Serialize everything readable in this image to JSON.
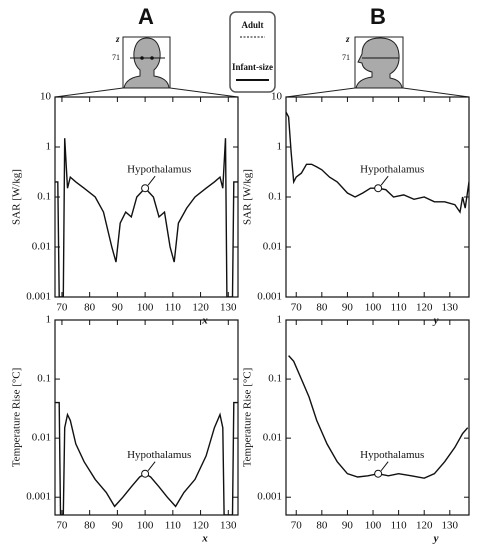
{
  "figure": {
    "panel_labels": [
      "A",
      "B"
    ],
    "legend": [
      "Adult",
      "Infant-size"
    ],
    "head": {
      "axis": "z",
      "level": "71"
    }
  },
  "chart_data": [
    {
      "type": "line",
      "xlabel": "x",
      "ylabel": "SAR [W/kg]",
      "log_y": true,
      "xlim": [
        67.5,
        133.5
      ],
      "ylim": [
        0.001,
        10
      ],
      "xticks": [
        70,
        80,
        90,
        100,
        110,
        120,
        130
      ],
      "yticks": [
        10,
        1,
        0.1,
        0.01,
        0.001
      ],
      "series": [
        {
          "color": "#111111",
          "x": [
            67.5,
            68.5,
            69,
            70.5,
            71,
            72,
            73,
            75,
            78,
            82,
            85,
            88,
            89.5,
            91,
            93,
            95,
            97,
            100,
            103,
            105,
            107,
            109,
            110.5,
            112,
            115,
            118,
            122,
            125,
            127,
            128,
            129,
            129.5,
            131.5,
            132,
            133.5
          ],
          "values": [
            0.2,
            0.2,
            0.001,
            0.001,
            1.5,
            0.15,
            0.25,
            0.2,
            0.15,
            0.1,
            0.05,
            0.01,
            0.005,
            0.03,
            0.05,
            0.04,
            0.1,
            0.15,
            0.1,
            0.04,
            0.05,
            0.01,
            0.005,
            0.03,
            0.06,
            0.1,
            0.15,
            0.2,
            0.25,
            0.15,
            1.5,
            0.001,
            0.001,
            0.2,
            0.2
          ]
        }
      ],
      "annotation": {
        "text": "Hypothalamus",
        "x": 100,
        "y": 0.15
      }
    },
    {
      "type": "line",
      "xlabel": "y",
      "ylabel": "SAR [W/kg]",
      "log_y": true,
      "xlim": [
        66,
        137.5
      ],
      "ylim": [
        0.001,
        10
      ],
      "xticks": [
        70,
        80,
        90,
        100,
        110,
        120,
        130
      ],
      "yticks": [
        10,
        1,
        0.1,
        0.01,
        0.001
      ],
      "series": [
        {
          "color": "#111111",
          "x": [
            66,
            67,
            68,
            69,
            70,
            72,
            74,
            76,
            78,
            80,
            83,
            86,
            90,
            93,
            96,
            99,
            102,
            105,
            108,
            112,
            116,
            120,
            124,
            128,
            132,
            134,
            135,
            136,
            137.5
          ],
          "values": [
            5,
            4,
            0.8,
            0.2,
            0.25,
            0.3,
            0.45,
            0.45,
            0.4,
            0.35,
            0.25,
            0.2,
            0.12,
            0.1,
            0.12,
            0.15,
            0.15,
            0.14,
            0.1,
            0.11,
            0.09,
            0.1,
            0.08,
            0.08,
            0.07,
            0.05,
            0.1,
            0.06,
            0.2
          ]
        }
      ],
      "annotation": {
        "text": "Hypothalamus",
        "x": 102,
        "y": 0.15
      }
    },
    {
      "type": "line",
      "xlabel": "x",
      "ylabel": "Temperature Rise [°C]",
      "log_y": true,
      "xlim": [
        67.5,
        133.5
      ],
      "ylim": [
        0.0005,
        1
      ],
      "xticks": [
        70,
        80,
        90,
        100,
        110,
        120,
        130
      ],
      "yticks": [
        1,
        0.1,
        0.01,
        0.001
      ],
      "series": [
        {
          "color": "#111111",
          "x": [
            67.5,
            69,
            69.5,
            70.5,
            71,
            72,
            73,
            75,
            78,
            82,
            86,
            89,
            92,
            95,
            98,
            100,
            102,
            105,
            108,
            111,
            114,
            118,
            122,
            125,
            127,
            128,
            128.5,
            131.5,
            132,
            133.5
          ],
          "values": [
            0.04,
            0.04,
            0.0005,
            0.0005,
            0.015,
            0.025,
            0.02,
            0.008,
            0.004,
            0.002,
            0.0012,
            0.0007,
            0.001,
            0.0015,
            0.0022,
            0.0025,
            0.0022,
            0.0015,
            0.001,
            0.0007,
            0.0012,
            0.002,
            0.005,
            0.015,
            0.025,
            0.015,
            0.0005,
            0.0005,
            0.04,
            0.04
          ]
        }
      ],
      "annotation": {
        "text": "Hypothalamus",
        "x": 100,
        "y": 0.0025
      }
    },
    {
      "type": "line",
      "xlabel": "y",
      "ylabel": "Temperature Rise [°C]",
      "log_y": true,
      "xlim": [
        66,
        137.5
      ],
      "ylim": [
        0.0005,
        1
      ],
      "xticks": [
        70,
        80,
        90,
        100,
        110,
        120,
        130
      ],
      "yticks": [
        1,
        0.1,
        0.01,
        0.001
      ],
      "series": [
        {
          "color": "#111111",
          "x": [
            67,
            69,
            72,
            75,
            78,
            82,
            86,
            90,
            94,
            98,
            102,
            106,
            110,
            115,
            120,
            124,
            128,
            132,
            135,
            137
          ],
          "values": [
            0.25,
            0.2,
            0.1,
            0.05,
            0.02,
            0.008,
            0.004,
            0.0025,
            0.0022,
            0.0023,
            0.0025,
            0.0023,
            0.0025,
            0.0023,
            0.0021,
            0.0025,
            0.004,
            0.007,
            0.012,
            0.015
          ]
        }
      ],
      "annotation": {
        "text": "Hypothalamus",
        "x": 102,
        "y": 0.0025
      }
    }
  ]
}
